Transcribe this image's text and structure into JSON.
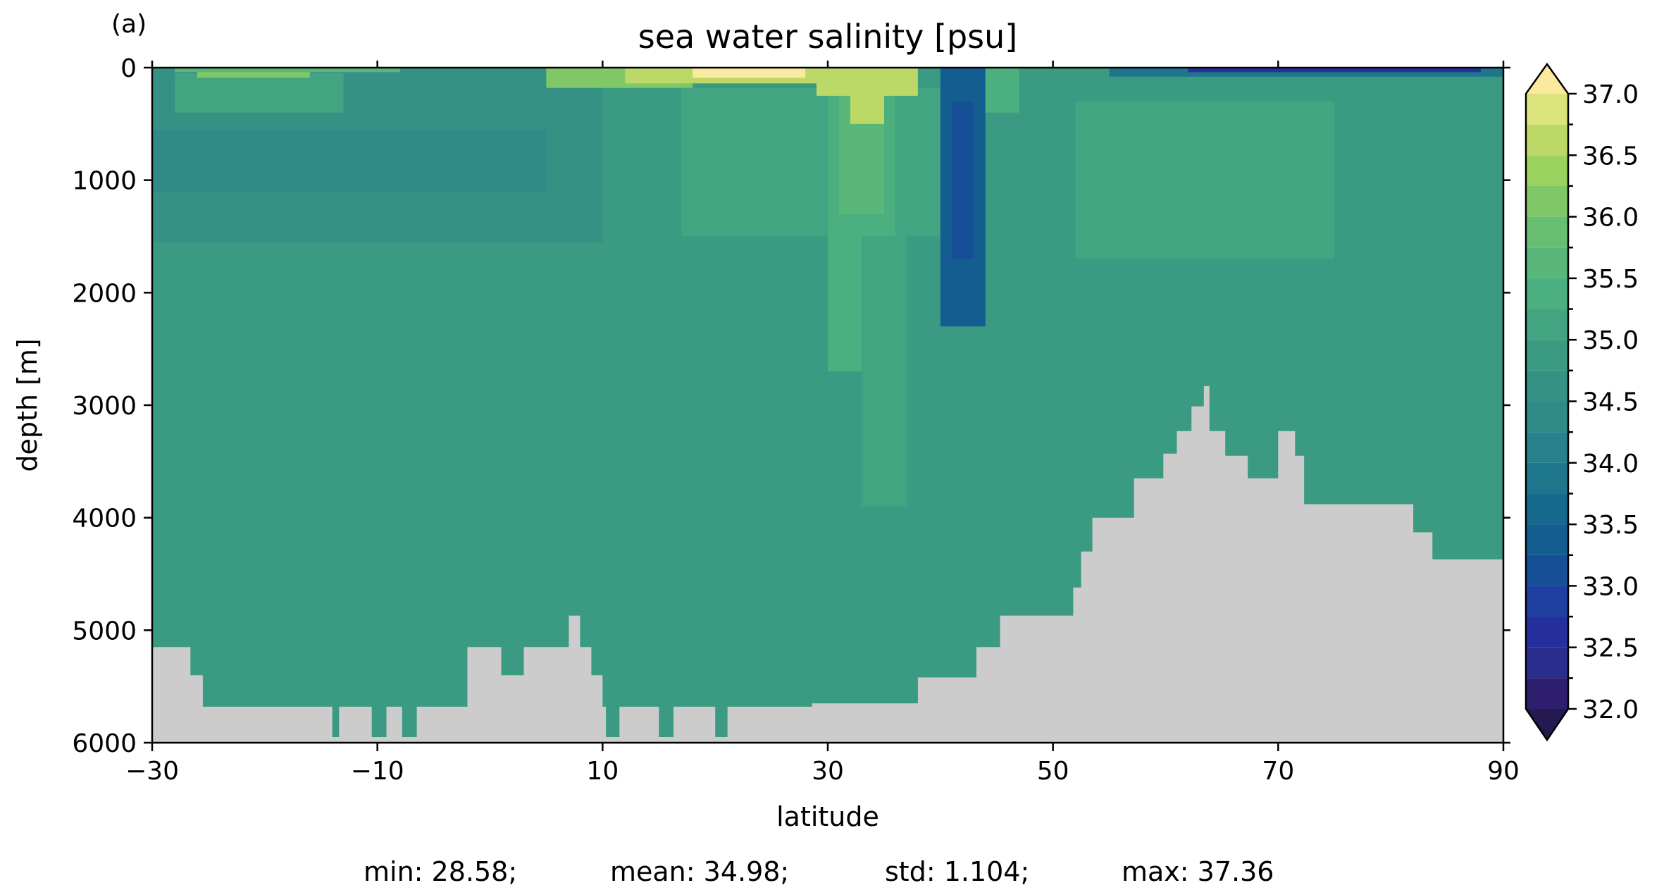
{
  "panel_label": "(a)",
  "stats": {
    "min": "min: 28.58;",
    "mean": "mean: 34.98;",
    "std": "std: 1.104;",
    "max": "max: 37.36"
  },
  "chart_data": {
    "type": "heatmap",
    "title": "sea water salinity [psu]",
    "xlabel": "latitude",
    "ylabel": "depth [m]",
    "xlim": [
      -30,
      90
    ],
    "ylim": [
      6000,
      0
    ],
    "y_inverted": true,
    "x_ticks": [
      -30,
      -10,
      10,
      30,
      50,
      70,
      90
    ],
    "x_tick_labels": [
      "−30",
      "−10",
      "10",
      "30",
      "50",
      "70",
      "90"
    ],
    "y_ticks": [
      0,
      1000,
      2000,
      3000,
      4000,
      5000,
      6000
    ],
    "y_tick_labels": [
      "0",
      "1000",
      "2000",
      "3000",
      "4000",
      "5000",
      "6000"
    ],
    "colorbar": {
      "min": 32.0,
      "max": 37.0,
      "levels": [
        32.0,
        32.25,
        32.5,
        32.75,
        33.0,
        33.25,
        33.5,
        33.75,
        34.0,
        34.25,
        34.5,
        34.75,
        35.0,
        35.25,
        35.5,
        35.75,
        36.0,
        36.25,
        36.5,
        36.75,
        37.0
      ],
      "ticks": [
        32.0,
        32.5,
        33.0,
        33.5,
        34.0,
        34.5,
        35.0,
        35.5,
        36.0,
        36.5,
        37.0
      ],
      "tick_labels": [
        "32.0",
        "32.5",
        "33.0",
        "33.5",
        "34.0",
        "34.5",
        "35.0",
        "35.5",
        "36.0",
        "36.5",
        "37.0"
      ],
      "extend": "both",
      "colors": [
        "#2d1e6e",
        "#2a2d8c",
        "#25309e",
        "#1f40a0",
        "#174f97",
        "#135d91",
        "#166a8e",
        "#1e768c",
        "#27808a",
        "#308a87",
        "#349184",
        "#3a9a82",
        "#43a482",
        "#4caf7f",
        "#59b77a",
        "#68bf72",
        "#80c867",
        "#9bd15e",
        "#bcd968",
        "#dbe37c",
        "#f5e898"
      ],
      "extend_low_color": "#241a50",
      "extend_high_color": "#fbe9a0"
    },
    "land_color": "#cccccc",
    "cells": [
      {
        "lat": [
          -30,
          90
        ],
        "depth": [
          0,
          6000
        ],
        "value": 34.9
      },
      {
        "lat": [
          -30,
          10
        ],
        "depth": [
          0,
          1550
        ],
        "value": 34.6
      },
      {
        "lat": [
          -30,
          5
        ],
        "depth": [
          550,
          1100
        ],
        "value": 34.45
      },
      {
        "lat": [
          -28,
          -13
        ],
        "depth": [
          50,
          400
        ],
        "value": 35.1
      },
      {
        "lat": [
          -26,
          -16
        ],
        "depth": [
          0,
          90
        ],
        "value": 36.1
      },
      {
        "lat": [
          -28,
          -8
        ],
        "depth": [
          0,
          40
        ],
        "value": 35.7
      },
      {
        "lat": [
          5,
          18
        ],
        "depth": [
          0,
          180
        ],
        "value": 36.0
      },
      {
        "lat": [
          12,
          30
        ],
        "depth": [
          0,
          140
        ],
        "value": 36.6
      },
      {
        "lat": [
          18,
          28
        ],
        "depth": [
          0,
          90
        ],
        "value": 37.0
      },
      {
        "lat": [
          17,
          40
        ],
        "depth": [
          180,
          1500
        ],
        "value": 35.15
      },
      {
        "lat": [
          30,
          36
        ],
        "depth": [
          0,
          2700
        ],
        "value": 35.35
      },
      {
        "lat": [
          31,
          35
        ],
        "depth": [
          0,
          1300
        ],
        "value": 35.7
      },
      {
        "lat": [
          32,
          35
        ],
        "depth": [
          0,
          500
        ],
        "value": 36.5
      },
      {
        "lat": [
          29,
          38
        ],
        "depth": [
          0,
          250
        ],
        "value": 36.6
      },
      {
        "lat": [
          33,
          37
        ],
        "depth": [
          1500,
          3900
        ],
        "value": 35.05
      },
      {
        "lat": [
          40,
          44
        ],
        "depth": [
          0,
          2300
        ],
        "value": 33.4
      },
      {
        "lat": [
          41,
          43
        ],
        "depth": [
          300,
          1700
        ],
        "value": 33.0
      },
      {
        "lat": [
          44,
          47
        ],
        "depth": [
          0,
          400
        ],
        "value": 35.3
      },
      {
        "lat": [
          52,
          75
        ],
        "depth": [
          300,
          1700
        ],
        "value": 35.05
      },
      {
        "lat": [
          55,
          90
        ],
        "depth": [
          0,
          80
        ],
        "value": 33.8
      },
      {
        "lat": [
          62,
          88
        ],
        "depth": [
          0,
          40
        ],
        "value": 32.6
      }
    ],
    "bathymetry": [
      [
        -30,
        5150
      ],
      [
        -26.6,
        5150
      ],
      [
        -26.6,
        5400
      ],
      [
        -25.5,
        5400
      ],
      [
        -25.5,
        5680
      ],
      [
        -14,
        5680
      ],
      [
        -14,
        5950
      ],
      [
        -13.4,
        5950
      ],
      [
        -13.4,
        5680
      ],
      [
        -10.5,
        5680
      ],
      [
        -10.5,
        5950
      ],
      [
        -9.2,
        5950
      ],
      [
        -9.2,
        5680
      ],
      [
        -7.8,
        5680
      ],
      [
        -7.8,
        5950
      ],
      [
        -6.5,
        5950
      ],
      [
        -6.5,
        5680
      ],
      [
        -2,
        5680
      ],
      [
        -2,
        5150
      ],
      [
        1,
        5150
      ],
      [
        1,
        5400
      ],
      [
        3,
        5400
      ],
      [
        3,
        5150
      ],
      [
        7,
        5150
      ],
      [
        7,
        4870
      ],
      [
        8,
        4870
      ],
      [
        8,
        5150
      ],
      [
        9,
        5150
      ],
      [
        9,
        5400
      ],
      [
        10,
        5400
      ],
      [
        10,
        5680
      ],
      [
        10.3,
        5680
      ],
      [
        10.3,
        5950
      ],
      [
        11.5,
        5950
      ],
      [
        11.5,
        5680
      ],
      [
        15,
        5680
      ],
      [
        15,
        5950
      ],
      [
        16.3,
        5950
      ],
      [
        16.3,
        5680
      ],
      [
        20,
        5680
      ],
      [
        20,
        5950
      ],
      [
        21.1,
        5950
      ],
      [
        21.1,
        5680
      ],
      [
        28.6,
        5680
      ],
      [
        28.6,
        5650
      ],
      [
        38,
        5650
      ],
      [
        38,
        5420
      ],
      [
        43.2,
        5420
      ],
      [
        43.2,
        5150
      ],
      [
        45.3,
        5150
      ],
      [
        45.3,
        4870
      ],
      [
        51.8,
        4870
      ],
      [
        51.8,
        4620
      ],
      [
        52.5,
        4620
      ],
      [
        52.5,
        4300
      ],
      [
        53.5,
        4300
      ],
      [
        53.5,
        4000
      ],
      [
        57.2,
        4000
      ],
      [
        57.2,
        3650
      ],
      [
        59.8,
        3650
      ],
      [
        59.8,
        3430
      ],
      [
        61,
        3430
      ],
      [
        61,
        3230
      ],
      [
        62.3,
        3230
      ],
      [
        62.3,
        3010
      ],
      [
        63.4,
        3010
      ],
      [
        63.4,
        2830
      ],
      [
        63.9,
        2830
      ],
      [
        63.9,
        3230
      ],
      [
        65.3,
        3230
      ],
      [
        65.3,
        3450
      ],
      [
        67.3,
        3450
      ],
      [
        67.3,
        3650
      ],
      [
        70,
        3650
      ],
      [
        70,
        3230
      ],
      [
        71.5,
        3230
      ],
      [
        71.5,
        3450
      ],
      [
        72.3,
        3450
      ],
      [
        72.3,
        3880
      ],
      [
        82,
        3880
      ],
      [
        82,
        4130
      ],
      [
        83.7,
        4130
      ],
      [
        83.7,
        4370
      ],
      [
        90,
        4370
      ],
      [
        90,
        6000
      ],
      [
        -30,
        6000
      ]
    ]
  }
}
